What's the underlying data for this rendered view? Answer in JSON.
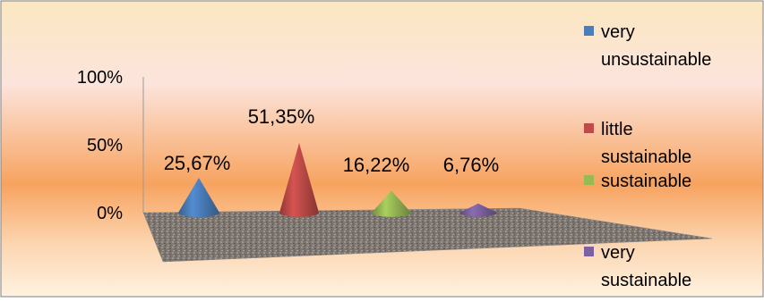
{
  "chart_data": {
    "type": "bar",
    "style": "3d-cone",
    "categories": [
      "very unsustainable",
      "little sustainable",
      "sustainable",
      "very sustainable"
    ],
    "values": [
      25.67,
      51.35,
      16.22,
      6.76
    ],
    "data_labels": [
      "25,67%",
      "51,35%",
      "16,22%",
      "6,76%"
    ],
    "colors": [
      "#4a7ebb",
      "#be4b48",
      "#98b954",
      "#7d60a0"
    ],
    "yticks": [
      "0%",
      "50%",
      "100%"
    ],
    "ylim": [
      0,
      100
    ],
    "legend": {
      "position": "right",
      "items": [
        {
          "lines": [
            "very",
            "unsustainable"
          ]
        },
        {
          "lines": [
            "little",
            "sustainable"
          ]
        },
        {
          "lines": [
            "sustainable"
          ]
        },
        {
          "lines": [
            "very",
            "sustainable"
          ]
        }
      ]
    },
    "grid": false
  }
}
